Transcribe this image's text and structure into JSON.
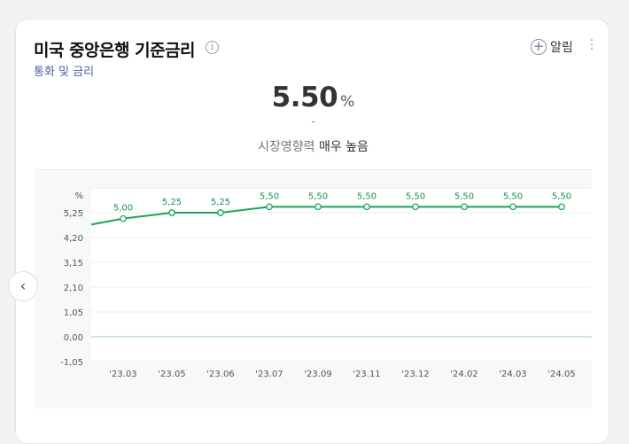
{
  "header": {
    "title": "미국 중앙은행 기준금리",
    "info_icon": "info-icon",
    "subtitle": "통화 및 금리",
    "alarm_label": "알림"
  },
  "summary": {
    "value": "5.50",
    "unit": "%",
    "change": "-",
    "sentiment_prefix": "시장영향력",
    "sentiment_level": "매우 높음"
  },
  "colors": {
    "line": "#1aa55a",
    "subtitle": "#4a5ea8"
  },
  "chart_data": {
    "type": "line",
    "ylabel": "%",
    "yticks": [
      5.25,
      4.2,
      3.15,
      2.1,
      1.05,
      0.0,
      -1.05
    ],
    "ytick_labels": [
      "5,25",
      "4,20",
      "3,15",
      "2,10",
      "1,05",
      "0,00",
      "-1,05"
    ],
    "ylim": [
      -1.05,
      6.3
    ],
    "categories": [
      "'23.03",
      "'23.05",
      "'23.06",
      "'23.07",
      "'23.09",
      "'23.11",
      "'23.12",
      "'24.02",
      "'24.03",
      "'24.05"
    ],
    "x_labels": [
      "'23.03",
      "'23.05",
      "'23.06",
      "'23.07",
      "'23.09",
      "'23.11",
      "'23.12",
      "'24.02",
      "'24.03",
      "'24.05"
    ],
    "values": [
      5.0,
      5.25,
      5.25,
      5.5,
      5.5,
      5.5,
      5.5,
      5.5,
      5.5,
      5.5
    ],
    "data_labels": [
      "5,00",
      "5,25",
      "5,25",
      "5,50",
      "5,50",
      "5,50",
      "5,50",
      "5,50",
      "5,50",
      "5,50"
    ],
    "prior_value": 4.75,
    "grid": true
  }
}
